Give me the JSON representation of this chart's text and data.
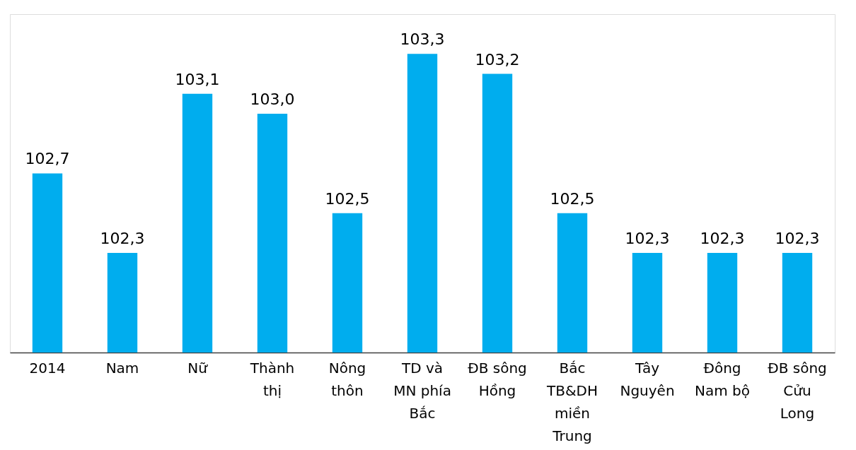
{
  "chart_data": {
    "type": "bar",
    "categories": [
      "2014",
      "Nam",
      "Nữ",
      "Thành\nthị",
      "Nông\nthôn",
      "TD và\nMN phía\nBắc",
      "ĐB sông\nHồng",
      "Bắc\nTB&DH\nmiền\nTrung",
      "Tây\nNguyên",
      "Đông\nNam bộ",
      "ĐB sông\nCửu\nLong"
    ],
    "values": [
      102.7,
      102.3,
      103.1,
      103.0,
      102.5,
      103.3,
      103.2,
      102.5,
      102.3,
      102.3,
      102.3
    ],
    "value_labels": [
      "102,7",
      "102,3",
      "103,1",
      "103,0",
      "102,5",
      "103,3",
      "103,2",
      "102,5",
      "102,3",
      "102,3",
      "102,3"
    ],
    "color": "#00adee",
    "ylim": [
      101.8,
      103.5
    ],
    "tick_labels": "x"
  }
}
